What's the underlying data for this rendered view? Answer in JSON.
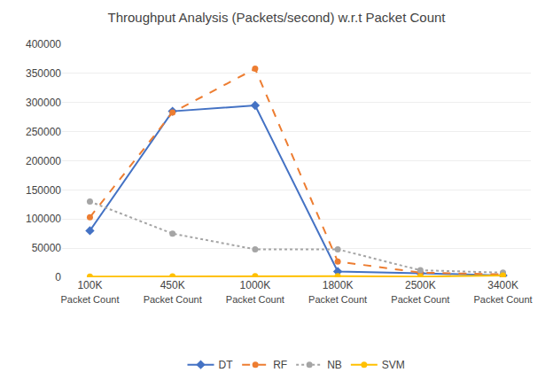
{
  "chart_data": {
    "type": "line",
    "title": "Throughput Analysis (Packets/second) w.r.t Packet Count",
    "xlabel": "Packet Count",
    "categories": [
      "100K",
      "450K",
      "1000K",
      "1800K",
      "2500K",
      "3400K"
    ],
    "series": [
      {
        "name": "DT",
        "color": "#4472C4",
        "line_style": "solid",
        "marker": "diamond",
        "values": [
          80000,
          285000,
          295000,
          10000,
          7000,
          3000
        ]
      },
      {
        "name": "RF",
        "color": "#ED7D31",
        "line_style": "dashed",
        "marker": "circle",
        "values": [
          103000,
          283000,
          358000,
          27000,
          8000,
          5000
        ]
      },
      {
        "name": "NB",
        "color": "#A5A5A5",
        "line_style": "dotted",
        "marker": "circle",
        "values": [
          130000,
          75000,
          48000,
          48000,
          12000,
          8000
        ]
      },
      {
        "name": "SVM",
        "color": "#FFC000",
        "line_style": "solid",
        "marker": "circle",
        "values": [
          1000,
          1500,
          2000,
          2000,
          1000,
          3000
        ]
      }
    ],
    "ylim": [
      0,
      400000
    ],
    "yticks": [
      0,
      50000,
      100000,
      150000,
      200000,
      250000,
      300000,
      350000,
      400000
    ],
    "grid": true,
    "legend": "bottom"
  }
}
